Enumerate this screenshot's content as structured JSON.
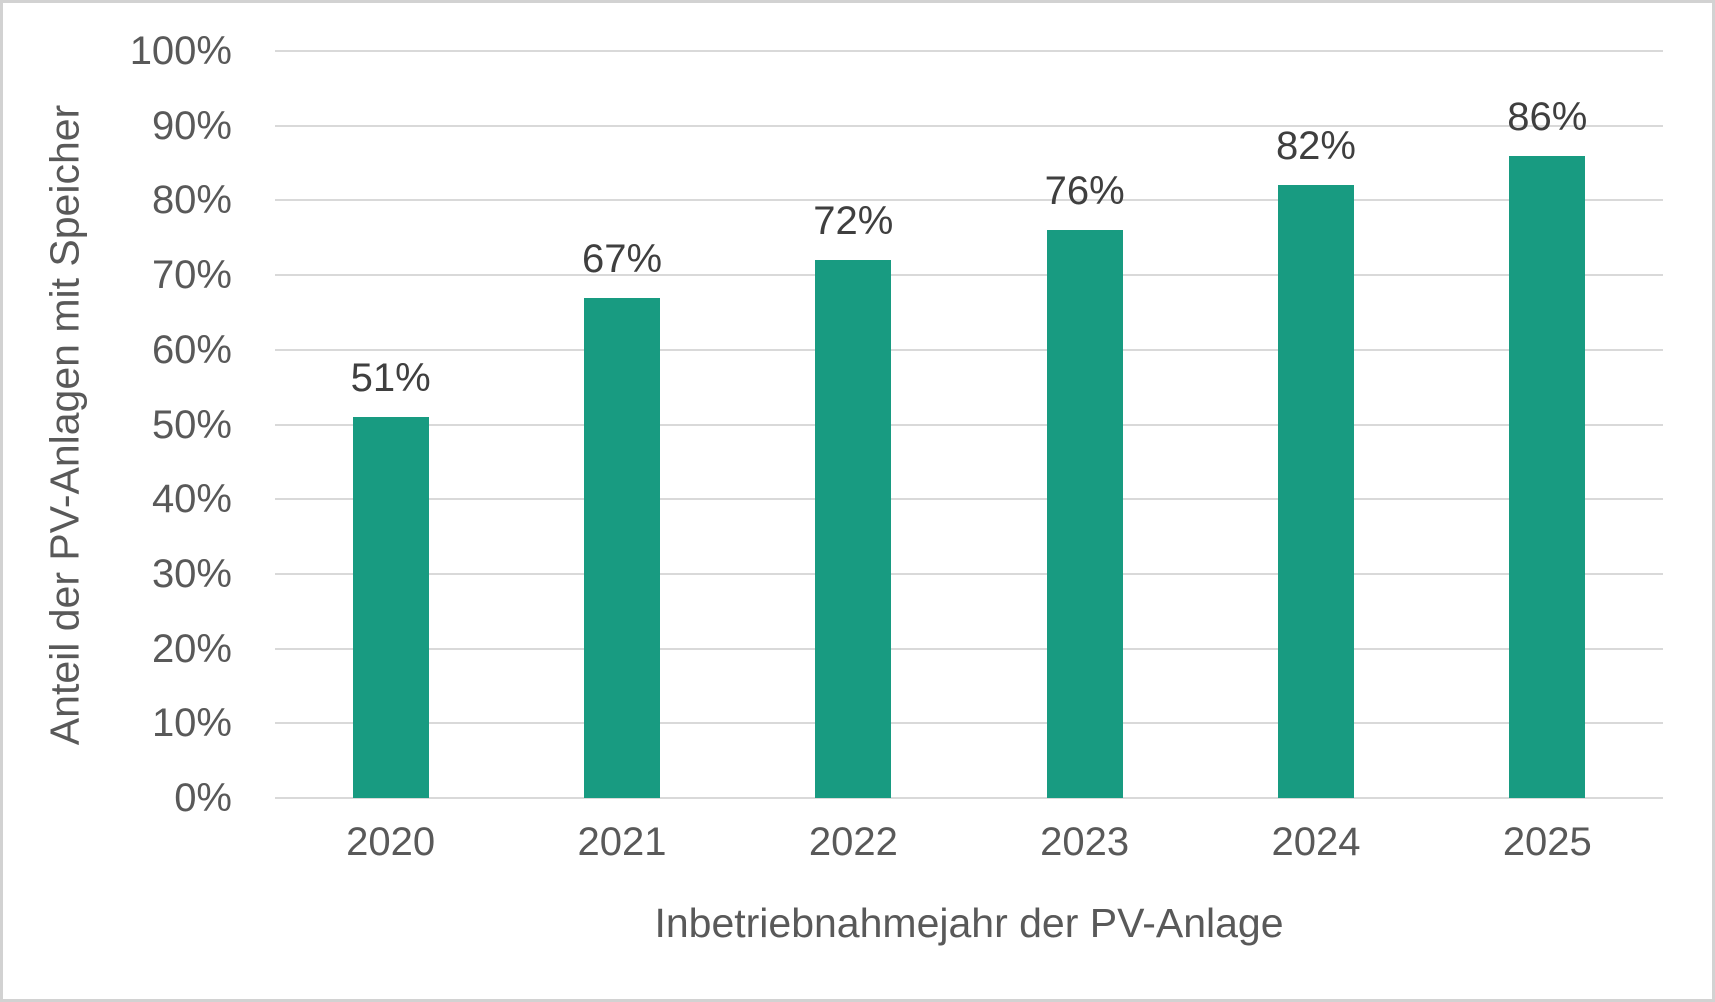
{
  "chart_data": {
    "type": "bar",
    "categories": [
      "2020",
      "2021",
      "2022",
      "2023",
      "2024",
      "2025"
    ],
    "values": [
      51,
      67,
      72,
      76,
      82,
      86
    ],
    "data_labels": [
      "51%",
      "67%",
      "72%",
      "76%",
      "82%",
      "86%"
    ],
    "title": "",
    "xlabel": "Inbetriebnahmejahr der PV-Anlage",
    "ylabel": "Anteil der PV-Anlagen mit Speicher",
    "ylim": [
      0,
      100
    ],
    "ytick_values": [
      0,
      10,
      20,
      30,
      40,
      50,
      60,
      70,
      80,
      90,
      100
    ],
    "ytick_labels": [
      "0%",
      "10%",
      "20%",
      "30%",
      "40%",
      "50%",
      "60%",
      "70%",
      "80%",
      "90%",
      "100%"
    ],
    "grid": "horizontal",
    "legend": "none"
  },
  "colors": {
    "bar": "#189b81",
    "gridline": "#d9d9d9",
    "axis_text": "#595959",
    "data_label_text": "#3f3f3f",
    "frame_border": "#d2d2d2",
    "background": "#ffffff"
  }
}
